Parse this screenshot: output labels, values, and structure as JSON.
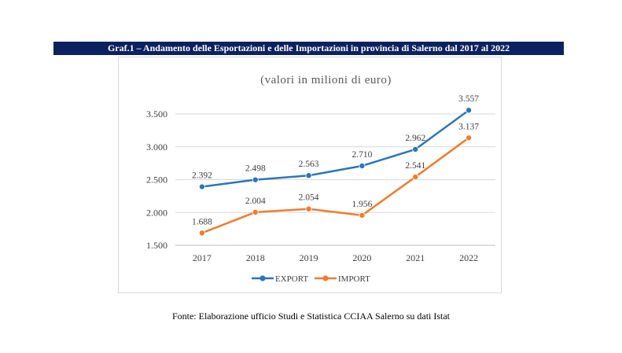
{
  "figure": {
    "title": "Graf.1 – Andamento delle Esportazioni e delle Importazioni in provincia di Salerno dal 2017 al 2022",
    "source": "Fonte: Elaborazione ufficio Studi e Statistica CCIAA Salerno su dati Istat"
  },
  "chart_data": {
    "type": "line",
    "title": "",
    "subtitle": "(valori in milioni di euro)",
    "xlabel": "",
    "ylabel": "",
    "categories": [
      "2017",
      "2018",
      "2019",
      "2020",
      "2021",
      "2022"
    ],
    "ylim": [
      1500,
      3500
    ],
    "yticks": [
      1500,
      2000,
      2500,
      3000,
      3500
    ],
    "ytick_labels": [
      "1.500",
      "2.000",
      "2.500",
      "3.000",
      "3.500"
    ],
    "grid": true,
    "legend_position": "bottom",
    "series": [
      {
        "name": "EXPORT",
        "color": "#2e75b6",
        "values": [
          2392,
          2498,
          2563,
          2710,
          2962,
          3557
        ],
        "labels": [
          "2.392",
          "2.498",
          "2.563",
          "2.710",
          "2.962",
          "3.557"
        ]
      },
      {
        "name": "IMPORT",
        "color": "#ed7d31",
        "values": [
          1688,
          2004,
          2054,
          1956,
          2541,
          3137
        ],
        "labels": [
          "1.688",
          "2.004",
          "2.054",
          "1.956",
          "2.541",
          "3.137"
        ]
      }
    ]
  }
}
